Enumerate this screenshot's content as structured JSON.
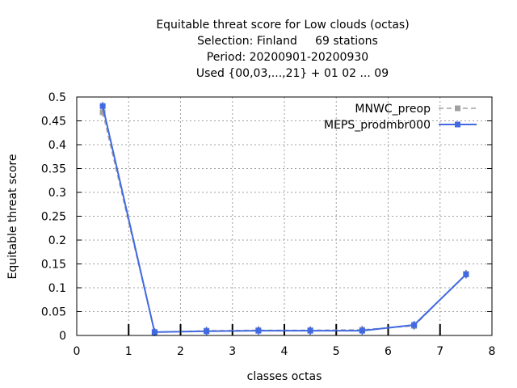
{
  "chart_data": {
    "type": "line",
    "title_lines": [
      "Equitable threat score  for Low clouds (octas)",
      "Selection: Finland     69 stations",
      "Period: 20200901-20200930",
      "Used {00,03,...,21} + 01 02 ... 09"
    ],
    "xlabel": "classes octas",
    "ylabel": "Equitable threat score",
    "xlim": [
      0,
      8
    ],
    "ylim": [
      0,
      0.5
    ],
    "xticks": [
      0,
      1,
      2,
      3,
      4,
      5,
      6,
      7,
      8
    ],
    "yticks": [
      0,
      0.05,
      0.1,
      0.15,
      0.2,
      0.25,
      0.3,
      0.35,
      0.4,
      0.45,
      0.5
    ],
    "grid": true,
    "legend_position": "top-right",
    "x": [
      0.5,
      1.5,
      2.5,
      3.5,
      4.5,
      5.5,
      6.5,
      7.5
    ],
    "series": [
      {
        "name": "MNWC_preop",
        "color": "#a0a0a0",
        "style": "dashed",
        "values": [
          0.468,
          0.007,
          0.01,
          0.011,
          0.011,
          0.012,
          0.02,
          0.129
        ]
      },
      {
        "name": "MEPS_prodmbr000",
        "color": "#4169e1",
        "style": "solid",
        "values": [
          0.481,
          0.007,
          0.009,
          0.01,
          0.01,
          0.01,
          0.022,
          0.128
        ]
      }
    ],
    "class_markers_x": [
      1,
      2,
      3,
      4,
      5,
      6,
      7
    ]
  }
}
